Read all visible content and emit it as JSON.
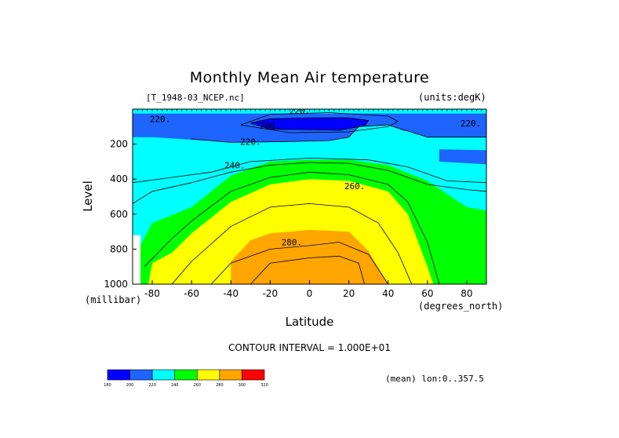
{
  "chart_data": {
    "type": "heatmap",
    "title": "Monthly Mean Air temperature",
    "file_label": "[T_1948-03_NCEP.nc]",
    "units_label": "(units:degK)",
    "xlabel": "Latitude",
    "xunit_label": "(degrees_north)",
    "ylabel": "Level",
    "yunit_label": "(millibar)",
    "xlim": [
      -90,
      90
    ],
    "ylim": [
      1000,
      0
    ],
    "x_ticks": [
      -80,
      -60,
      -40,
      -20,
      0,
      20,
      40,
      60,
      80
    ],
    "y_ticks": [
      200,
      400,
      600,
      800,
      1000
    ],
    "contour_interval_text": "CONTOUR INTERVAL = 1.000E+01",
    "mean_label": "(mean) lon:0..357.5",
    "levels": [
      180,
      200,
      220,
      240,
      260,
      280,
      300,
      320
    ],
    "level_colors": [
      "#0000ff",
      "#1e64ff",
      "#00ffff",
      "#00ff00",
      "#ffff00",
      "#ffa500",
      "#ff0000"
    ],
    "colorbar_labels": [
      "180",
      "200",
      "220",
      "240",
      "260",
      "280",
      "300",
      "320"
    ],
    "contour_labels": [
      {
        "text": "220.",
        "lat": -76,
        "level": 55
      },
      {
        "text": "220.",
        "lat": -5,
        "level": 10
      },
      {
        "text": "200.",
        "lat": -20,
        "level": 95
      },
      {
        "text": "220.",
        "lat": 82,
        "level": 80
      },
      {
        "text": "220.",
        "lat": -30,
        "level": 185
      },
      {
        "text": "240.",
        "lat": -38,
        "level": 320
      },
      {
        "text": "260.",
        "lat": 23,
        "level": 440
      },
      {
        "text": "280.",
        "lat": -9,
        "level": 760
      }
    ],
    "regions": [
      {
        "value_range": [
          200,
          220
        ],
        "color": "#1e64ff",
        "boundary": [
          [
            -90,
            25
          ],
          [
            90,
            25
          ],
          [
            90,
            160
          ],
          [
            60,
            160
          ],
          [
            50,
            125
          ],
          [
            48,
            125
          ],
          [
            40,
            90
          ],
          [
            25,
            100
          ],
          [
            20,
            160
          ],
          [
            10,
            180
          ],
          [
            -10,
            185
          ],
          [
            -40,
            190
          ],
          [
            -60,
            175
          ],
          [
            -80,
            160
          ],
          [
            -90,
            160
          ]
        ]
      },
      {
        "value_range": [
          200,
          220
        ],
        "color": "#1e64ff",
        "boundary": [
          [
            66,
            230
          ],
          [
            90,
            235
          ],
          [
            90,
            315
          ],
          [
            66,
            300
          ]
        ]
      },
      {
        "value_range": [
          180,
          200
        ],
        "color": "#0000ff",
        "boundary": [
          [
            -30,
            80
          ],
          [
            -20,
            55
          ],
          [
            0,
            50
          ],
          [
            20,
            50
          ],
          [
            30,
            65
          ],
          [
            28,
            95
          ],
          [
            15,
            120
          ],
          [
            -20,
            115
          ]
        ]
      },
      {
        "value_range": [
          240,
          260
        ],
        "color": "#00ff00",
        "boundary": [
          [
            -88,
            1000
          ],
          [
            -88,
            820
          ],
          [
            -80,
            650
          ],
          [
            -60,
            560
          ],
          [
            -40,
            380
          ],
          [
            -20,
            300
          ],
          [
            0,
            290
          ],
          [
            20,
            290
          ],
          [
            40,
            320
          ],
          [
            60,
            410
          ],
          [
            80,
            560
          ],
          [
            90,
            580
          ],
          [
            90,
            1000
          ]
        ]
      },
      {
        "value_range": [
          260,
          280
        ],
        "color": "#ffff00",
        "boundary": [
          [
            -82,
            1000
          ],
          [
            -80,
            880
          ],
          [
            -70,
            820
          ],
          [
            -60,
            710
          ],
          [
            -40,
            530
          ],
          [
            -20,
            430
          ],
          [
            0,
            400
          ],
          [
            20,
            410
          ],
          [
            40,
            470
          ],
          [
            50,
            600
          ],
          [
            60,
            900
          ],
          [
            63,
            1000
          ]
        ]
      },
      {
        "value_range": [
          280,
          300
        ],
        "color": "#ffa500",
        "boundary": [
          [
            -40,
            1000
          ],
          [
            -40,
            870
          ],
          [
            -30,
            750
          ],
          [
            -20,
            710
          ],
          [
            0,
            690
          ],
          [
            20,
            700
          ],
          [
            30,
            810
          ],
          [
            40,
            1000
          ]
        ]
      },
      {
        "value_range": [
          180,
          220
        ],
        "color": "#ffffff",
        "boundary": [
          [
            -90,
            720
          ],
          [
            -86,
            720
          ],
          [
            -86,
            1000
          ],
          [
            -90,
            1000
          ]
        ]
      }
    ],
    "contour_lines": [
      [
        [
          -60,
          170
        ],
        [
          -40,
          190
        ],
        [
          -10,
          185
        ],
        [
          10,
          180
        ],
        [
          20,
          160
        ],
        [
          25,
          100
        ],
        [
          40,
          90
        ],
        [
          50,
          125
        ],
        [
          60,
          160
        ],
        [
          90,
          160
        ]
      ],
      [
        [
          -90,
          420
        ],
        [
          -70,
          390
        ],
        [
          -50,
          360
        ],
        [
          -30,
          300
        ],
        [
          0,
          280
        ],
        [
          30,
          290
        ],
        [
          50,
          330
        ],
        [
          70,
          410
        ],
        [
          90,
          420
        ]
      ],
      [
        [
          -90,
          540
        ],
        [
          -80,
          470
        ],
        [
          -60,
          420
        ],
        [
          -40,
          360
        ],
        [
          -20,
          320
        ],
        [
          0,
          305
        ],
        [
          20,
          310
        ],
        [
          40,
          350
        ],
        [
          60,
          430
        ],
        [
          80,
          460
        ],
        [
          90,
          470
        ]
      ],
      [
        [
          -84,
          900
        ],
        [
          -70,
          740
        ],
        [
          -60,
          640
        ],
        [
          -40,
          470
        ],
        [
          -20,
          390
        ],
        [
          0,
          360
        ],
        [
          20,
          375
        ],
        [
          40,
          430
        ],
        [
          50,
          530
        ],
        [
          60,
          760
        ],
        [
          66,
          1000
        ]
      ],
      [
        [
          -70,
          1000
        ],
        [
          -60,
          870
        ],
        [
          -40,
          670
        ],
        [
          -20,
          560
        ],
        [
          0,
          540
        ],
        [
          20,
          560
        ],
        [
          35,
          650
        ],
        [
          45,
          820
        ],
        [
          52,
          1000
        ]
      ],
      [
        [
          -50,
          1000
        ],
        [
          -40,
          880
        ],
        [
          -20,
          800
        ],
        [
          0,
          780
        ],
        [
          15,
          760
        ],
        [
          30,
          830
        ],
        [
          40,
          1000
        ]
      ],
      [
        [
          -30,
          1000
        ],
        [
          -20,
          880
        ],
        [
          0,
          850
        ],
        [
          15,
          840
        ],
        [
          25,
          880
        ],
        [
          28,
          1000
        ]
      ],
      [
        [
          -30,
          80
        ],
        [
          -20,
          55
        ],
        [
          0,
          50
        ],
        [
          20,
          50
        ],
        [
          30,
          65
        ],
        [
          28,
          95
        ],
        [
          15,
          120
        ],
        [
          -20,
          115
        ],
        [
          -30,
          80
        ]
      ],
      [
        [
          -35,
          90
        ],
        [
          -20,
          30
        ],
        [
          10,
          20
        ],
        [
          40,
          40
        ],
        [
          45,
          70
        ],
        [
          40,
          100
        ],
        [
          20,
          130
        ],
        [
          -10,
          135
        ],
        [
          -35,
          90
        ]
      ]
    ]
  }
}
